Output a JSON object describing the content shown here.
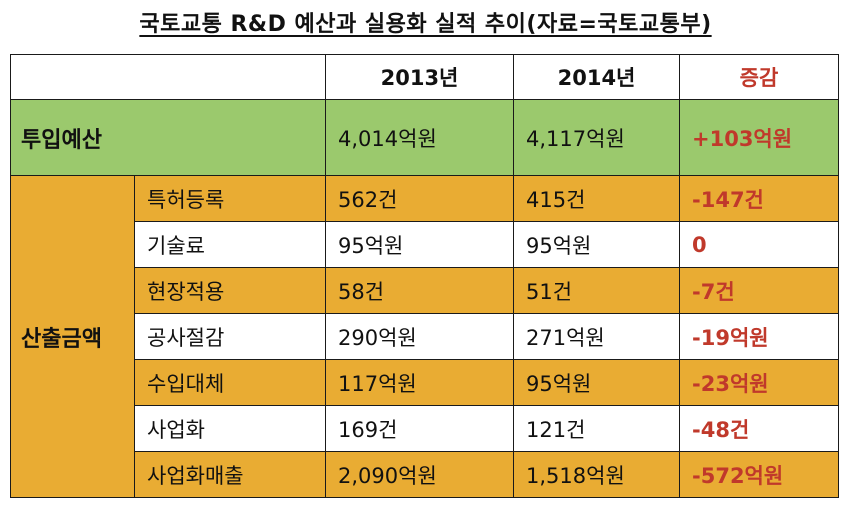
{
  "title": "국토교통 R&D 예산과 실용화 실적 추이(자료=국토교통부)",
  "header": {
    "col_2013": "2013년",
    "col_2014": "2014년",
    "col_change": "증감"
  },
  "budget": {
    "label": "투입예산",
    "v2013": "4,014억원",
    "v2014": "4,117억원",
    "change": "+103억원"
  },
  "output": {
    "label": "산출금액",
    "rows": [
      {
        "item": "특허등록",
        "v2013": "562건",
        "v2014": "415건",
        "change": "-147건"
      },
      {
        "item": "기술료",
        "v2013": "95억원",
        "v2014": "95억원",
        "change": "0"
      },
      {
        "item": "현장적용",
        "v2013": "58건",
        "v2014": "51건",
        "change": "-7건"
      },
      {
        "item": "공사절감",
        "v2013": "290억원",
        "v2014": "271억원",
        "change": "-19억원"
      },
      {
        "item": "수입대체",
        "v2013": "117억원",
        "v2014": "95억원",
        "change": "-23억원"
      },
      {
        "item": "사업화",
        "v2013": "169건",
        "v2014": "121건",
        "change": "-48건"
      },
      {
        "item": "사업화매출",
        "v2013": "2,090억원",
        "v2014": "1,518억원",
        "change": "-572억원"
      }
    ]
  },
  "colors": {
    "budget_bg": "#9bc96d",
    "output_bg": "#e9ac33",
    "change_text": "#c0392b"
  }
}
